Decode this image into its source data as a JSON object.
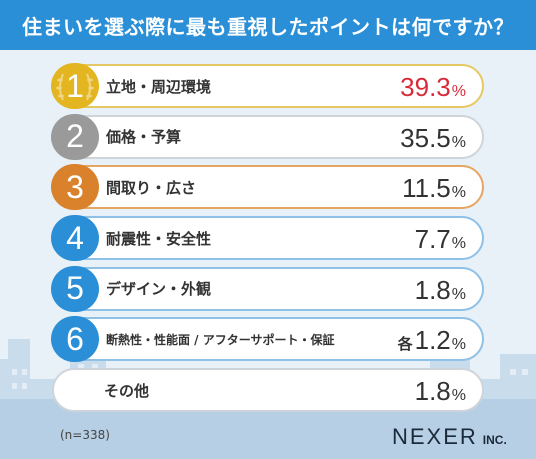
{
  "title": "住まいを選ぶ際に最も重視したポイントは何ですか？",
  "colors": {
    "title_bg": "#2a8fd6",
    "gold": "#e3b520",
    "silver": "#9a9a9a",
    "bronze": "#d9822b",
    "blue": "#2a8fd6",
    "highlight": "#d92a3a"
  },
  "chart_data": {
    "type": "table",
    "title": "住まいを選ぶ際に最も重視したポイントは何ですか？",
    "unit": "%",
    "rows": [
      {
        "rank": "1",
        "label": "立地・周辺環境",
        "value": 39.3,
        "value_text": "39.3",
        "prefix": "",
        "badge": "gold",
        "highlight": true
      },
      {
        "rank": "2",
        "label": "価格・予算",
        "value": 35.5,
        "value_text": "35.5",
        "prefix": "",
        "badge": "silver",
        "highlight": false
      },
      {
        "rank": "3",
        "label": "間取り・広さ",
        "value": 11.5,
        "value_text": "11.5",
        "prefix": "",
        "badge": "bronze",
        "highlight": false
      },
      {
        "rank": "4",
        "label": "耐震性・安全性",
        "value": 7.7,
        "value_text": "7.7",
        "prefix": "",
        "badge": "blue",
        "highlight": false
      },
      {
        "rank": "5",
        "label": "デザイン・外観",
        "value": 1.8,
        "value_text": "1.8",
        "prefix": "",
        "badge": "blue",
        "highlight": false
      },
      {
        "rank": "6",
        "label": "断熱性・性能面 / アフターサポート・保証",
        "value": 1.2,
        "value_text": "1.2",
        "prefix": "各",
        "badge": "blue",
        "highlight": false
      },
      {
        "rank": "",
        "label": "その他",
        "value": 1.8,
        "value_text": "1.8",
        "prefix": "",
        "badge": "none",
        "highlight": false
      }
    ],
    "note": "(n=338)"
  },
  "logo": {
    "main": "NEXER",
    "sub": "INC."
  }
}
